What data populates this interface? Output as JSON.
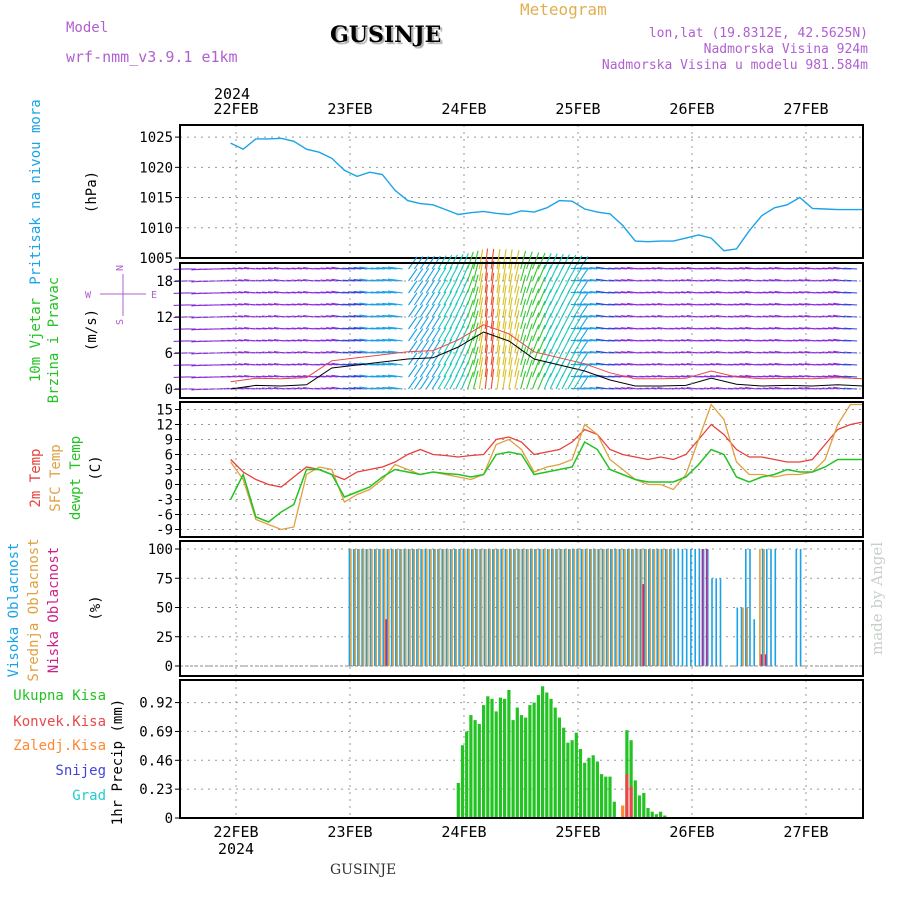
{
  "header": {
    "model_label": "Model",
    "model_value": "wrf-nmm_v3.9.1  e1km",
    "title": "GUSINJE",
    "meteogram_label": "Meteogram",
    "lonlat": "lon,lat (19.8312E, 42.5625N)",
    "elevation": "Nadmorska Visina 924m",
    "model_elevation": "Nadmorska Visina u modelu 981.584m"
  },
  "footer": {
    "title": "GUSINJE"
  },
  "watermark": "made by Angel",
  "colors": {
    "pressure": "#1aa3e8",
    "temp2m": "#e8403a",
    "sfc_temp": "#e0a040",
    "dewpoint": "#22c322",
    "high_cloud": "#1aa3e8",
    "mid_cloud": "#e0a040",
    "low_cloud": "#cc2288",
    "total_precip": "#22c322",
    "conv_precip": "#e84848",
    "frz_precip": "#ff8833",
    "snow": "#4444dd",
    "graupel": "#22cccc",
    "purple_text": "#b060d0",
    "gold_text": "#e0b050"
  },
  "x_axis": {
    "year": "2024",
    "days": [
      "22FEB",
      "23FEB",
      "24FEB",
      "25FEB",
      "26FEB",
      "27FEB"
    ]
  },
  "chart_data": [
    {
      "type": "line",
      "panel": "pressure",
      "ylabel": [
        "Pritisak na nivou mora",
        "(hPa)"
      ],
      "ylim": [
        1005,
        1027
      ],
      "yticks": [
        1005,
        1010,
        1015,
        1020,
        1025
      ],
      "x_hours": [
        0,
        3,
        6,
        9,
        12,
        15,
        18,
        21,
        24,
        27,
        30,
        33,
        36,
        39,
        42,
        45,
        48,
        51,
        54,
        57,
        60,
        63,
        66,
        69,
        72,
        75,
        78,
        81,
        84,
        87,
        90,
        93,
        96,
        99,
        102,
        105,
        108,
        111,
        114,
        117,
        120,
        123,
        126,
        129,
        132,
        135,
        138,
        141,
        144,
        147,
        150
      ],
      "series": [
        {
          "values": [
            1024.0,
            1023.0,
            1024.7,
            1024.7,
            1024.8,
            1024.3,
            1023.0,
            1022.5,
            1021.5,
            1019.5,
            1018.5,
            1019.2,
            1018.8,
            1016.2,
            1014.5,
            1014.0,
            1013.8,
            1013.0,
            1012.2,
            1012.5,
            1012.7,
            1012.4,
            1012.2,
            1012.8,
            1012.6,
            1013.3,
            1014.5,
            1014.4,
            1013.1,
            1012.6,
            1012.3,
            1010.4,
            1007.8,
            1007.7,
            1007.8,
            1007.8,
            1008.3,
            1008.8,
            1008.3,
            1006.2,
            1006.5,
            1009.5,
            1012.0,
            1013.3,
            1013.8,
            1015.0,
            1013.2,
            1013.1,
            1013.0,
            1013.0,
            1013.0
          ]
        }
      ]
    },
    {
      "type": "wind-barbs",
      "panel": "wind",
      "ylabel": [
        "10m Vjetar",
        "Brzina i Pravac",
        "(m/s)"
      ],
      "direction_legend": [
        "N",
        "W",
        "E",
        "S"
      ],
      "ylim": [
        -1.5,
        21
      ],
      "yticks": [
        0,
        6,
        12,
        18
      ],
      "x_hours": [
        0,
        6,
        12,
        18,
        24,
        30,
        36,
        42,
        48,
        54,
        60,
        66,
        72,
        78,
        84,
        90,
        96,
        102,
        108,
        114,
        120,
        126,
        132,
        138,
        144,
        150
      ],
      "speed": [
        0.5,
        0.8,
        0.6,
        0.7,
        1.2,
        2.5,
        3.6,
        4.0,
        4.5,
        5.5,
        8.8,
        8.2,
        6.2,
        5.4,
        4.0,
        2.8,
        1.6,
        0.6,
        0.8,
        1.2,
        1.0,
        1.5,
        1.4,
        1.0,
        1.2,
        3.2
      ],
      "speed_trace": [
        0.0,
        0.6,
        0.5,
        0.7,
        3.5,
        4.0,
        4.5,
        5.0,
        5.2,
        7.0,
        9.5,
        8.0,
        5.0,
        4.0,
        3.0,
        1.5,
        0.5,
        0.5,
        0.6,
        1.8,
        0.8,
        0.5,
        0.6,
        0.5,
        0.7,
        0.5
      ]
    },
    {
      "type": "line",
      "panel": "temperature",
      "ylabel": [
        "2m Temp",
        "SFC Temp",
        "dewpt Temp",
        "(C)"
      ],
      "ylim": [
        -10.5,
        16.5
      ],
      "yticks": [
        -9,
        -6,
        -3,
        0,
        3,
        6,
        9,
        12,
        15
      ],
      "x_hours": [
        0,
        3,
        6,
        9,
        12,
        15,
        18,
        21,
        24,
        27,
        30,
        33,
        36,
        39,
        42,
        45,
        48,
        51,
        54,
        57,
        60,
        63,
        66,
        69,
        72,
        75,
        78,
        81,
        84,
        87,
        90,
        93,
        96,
        99,
        102,
        105,
        108,
        111,
        114,
        117,
        120,
        123,
        126,
        129,
        132,
        135,
        138,
        141,
        144,
        147,
        150
      ],
      "series": [
        {
          "name": "2m Temp",
          "values": [
            5.0,
            2.5,
            1.0,
            0.0,
            -0.5,
            1.5,
            3.5,
            3.0,
            2.0,
            1.0,
            2.5,
            3.0,
            3.5,
            4.5,
            6.0,
            7.0,
            6.0,
            5.8,
            5.5,
            5.8,
            6.0,
            9.0,
            9.5,
            8.5,
            6.0,
            6.5,
            7.0,
            8.5,
            11.0,
            10.0,
            7.0,
            6.0,
            5.5,
            5.0,
            5.5,
            5.0,
            6.0,
            9.0,
            12.0,
            10.0,
            7.0,
            5.5,
            5.5,
            5.0,
            4.5,
            4.5,
            5.0,
            8.0,
            11.0,
            12.0,
            12.5
          ]
        },
        {
          "name": "SFC Temp",
          "values": [
            4.5,
            1.0,
            -7.0,
            -8.0,
            -9.0,
            -8.5,
            2.0,
            3.5,
            3.0,
            -3.5,
            -2.0,
            -1.0,
            1.0,
            4.0,
            3.0,
            2.0,
            2.5,
            2.0,
            1.5,
            1.0,
            2.0,
            8.0,
            9.0,
            7.0,
            2.5,
            3.5,
            4.0,
            5.0,
            12.0,
            10.0,
            5.0,
            3.0,
            1.0,
            0.0,
            0.0,
            -1.0,
            2.0,
            9.0,
            16.0,
            13.0,
            4.5,
            2.0,
            2.0,
            1.5,
            2.0,
            2.0,
            2.5,
            5.0,
            12.0,
            16.0,
            16.0
          ]
        },
        {
          "name": "dewpt Temp",
          "values": [
            -3.0,
            2.0,
            -6.5,
            -7.5,
            -5.5,
            -4.0,
            3.0,
            3.0,
            2.0,
            -2.5,
            -1.5,
            -0.5,
            1.5,
            3.0,
            2.5,
            2.0,
            2.5,
            2.2,
            2.0,
            1.5,
            2.0,
            6.0,
            6.5,
            6.0,
            2.0,
            2.5,
            3.0,
            3.5,
            8.5,
            7.0,
            3.0,
            2.0,
            1.0,
            0.5,
            0.5,
            0.5,
            1.5,
            4.0,
            7.0,
            6.0,
            1.5,
            0.5,
            1.5,
            2.0,
            3.0,
            2.5,
            2.5,
            3.5,
            5.0,
            5.0,
            5.0
          ]
        }
      ]
    },
    {
      "type": "bar",
      "panel": "cloud-cover",
      "ylabel": [
        "Visoka Oblacnost",
        "Srednja Oblacnost",
        "Niska Oblacnost",
        "(%)"
      ],
      "ylim": [
        0,
        100
      ],
      "yticks": [
        0,
        25,
        50,
        75,
        100
      ],
      "series": [
        {
          "name": "Visoka Oblacnost",
          "segments": [
            [
              28,
              105,
              100
            ],
            [
              105,
              114,
              100
            ],
            [
              114,
              117,
              75
            ],
            [
              117,
              120,
              0
            ],
            [
              120,
              122,
              50
            ],
            [
              122,
              124,
              100
            ],
            [
              124,
              125,
              40
            ],
            [
              126,
              130,
              100
            ],
            [
              134,
              136,
              100
            ]
          ]
        },
        {
          "name": "Srednja Oblacnost",
          "segments": [
            [
              28,
              105,
              100
            ],
            [
              121,
              123,
              50
            ],
            [
              125,
              127,
              100
            ]
          ]
        },
        {
          "name": "Niska Oblacnost",
          "segments": [
            [
              36,
              37,
              40
            ],
            [
              97,
              98,
              70
            ],
            [
              111,
              113,
              100
            ],
            [
              125,
              127,
              10
            ]
          ]
        }
      ]
    },
    {
      "type": "bar",
      "panel": "precipitation",
      "ylabel": [
        "1hr Precip (mm)"
      ],
      "legend": [
        "Ukupna Kisa",
        "Konvek.Kisa",
        "Zaledj.Kisa",
        "Snijeg",
        "Grad"
      ],
      "ylim": [
        0,
        1.1
      ],
      "yticks": [
        0,
        0.23,
        0.46,
        0.69,
        0.92
      ],
      "x_hours": [
        54,
        55,
        56,
        57,
        58,
        59,
        60,
        61,
        62,
        63,
        64,
        65,
        66,
        67,
        68,
        69,
        70,
        71,
        72,
        73,
        74,
        75,
        76,
        77,
        78,
        79,
        80,
        81,
        82,
        83,
        84,
        85,
        86,
        87,
        88,
        89,
        90,
        91,
        92,
        93,
        94,
        95,
        96,
        97,
        98,
        99,
        100,
        101,
        102,
        103
      ],
      "series": [
        {
          "name": "Ukupna Kisa",
          "values": [
            0.28,
            0.58,
            0.69,
            0.82,
            0.78,
            0.75,
            0.9,
            0.97,
            0.95,
            0.85,
            0.96,
            0.95,
            1.02,
            0.78,
            0.88,
            0.82,
            0.8,
            0.9,
            0.92,
            0.98,
            1.05,
            1.0,
            0.95,
            0.88,
            0.8,
            0.72,
            0.6,
            0.62,
            0.68,
            0.55,
            0.44,
            0.48,
            0.5,
            0.45,
            0.35,
            0.33,
            0.33,
            0.13,
            0.0,
            0.0,
            0.7,
            0.62,
            0.3,
            0.18,
            0.2,
            0.08,
            0.05,
            0.03,
            0.05,
            0.02
          ]
        },
        {
          "name": "Konvek.Kisa",
          "values": [
            0,
            0,
            0,
            0,
            0,
            0,
            0,
            0,
            0,
            0,
            0,
            0,
            0,
            0,
            0,
            0,
            0,
            0,
            0,
            0,
            0,
            0,
            0,
            0,
            0,
            0,
            0,
            0,
            0,
            0,
            0,
            0,
            0,
            0,
            0,
            0,
            0,
            0,
            0,
            0,
            0.35,
            0.25,
            0,
            0,
            0,
            0,
            0,
            0,
            0,
            0
          ]
        },
        {
          "name": "Zaledj.Kisa",
          "values": [
            0,
            0,
            0,
            0,
            0,
            0,
            0,
            0,
            0,
            0,
            0,
            0,
            0,
            0,
            0,
            0,
            0,
            0,
            0,
            0,
            0,
            0,
            0,
            0,
            0,
            0,
            0,
            0,
            0,
            0,
            0,
            0,
            0,
            0,
            0,
            0,
            0,
            0,
            0,
            0.1,
            0,
            0,
            0,
            0,
            0,
            0,
            0,
            0,
            0,
            0
          ]
        }
      ]
    }
  ]
}
